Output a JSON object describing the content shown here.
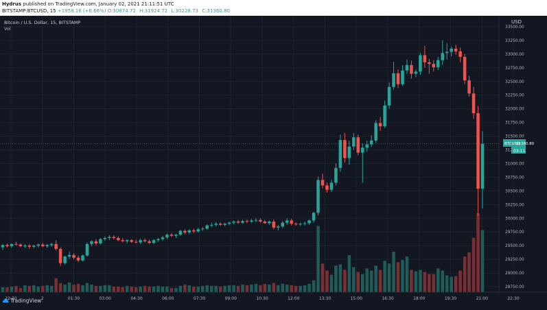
{
  "publish_line": {
    "author": "Hydrus",
    "text": "published on TradingView.com, January 02, 2021 21:11:51 UTC"
  },
  "ohlc_line": {
    "symbol": "BITSTAMP:BTCUSD, 15",
    "change": "+1958.16 (+6.66%)",
    "o": "O:30874.72",
    "h": "H:31924.72",
    "l": "L:30228.73",
    "c": "C:31360.80"
  },
  "chart_title": "Bitcoin / U.S. Dollar, 15, BITSTAMP",
  "volume_label": "Vol",
  "currency": "USD",
  "price_badge": {
    "symbol": "BTCUSD",
    "price": "31360.80",
    "countdown": "03:11"
  },
  "footer_brand": "TradingView",
  "colors": {
    "up": "#26a69a",
    "down": "#ef5350",
    "up_vol": "#1f5c57",
    "down_vol": "#7a2f33",
    "background": "#131722"
  },
  "chart_data": {
    "type": "candlestick",
    "y_axis_ticks": [
      "33500.00",
      "33250.00",
      "33000.00",
      "32750.00",
      "32500.00",
      "32250.00",
      "32000.00",
      "31750.00",
      "31500.00",
      "31250.00",
      "31000.00",
      "30750.00",
      "30500.00",
      "30250.00",
      "30000.00",
      "29750.00",
      "29500.00",
      "29250.00",
      "29000.00",
      "28750.00"
    ],
    "x_axis_ticks": [
      "22:30",
      "2",
      "01:30",
      "03:00",
      "04:30",
      "06:00",
      "07:30",
      "09:00",
      "10:30",
      "12:00",
      "13:30",
      "15:00",
      "16:30",
      "18:00",
      "19:30",
      "21:00",
      "22:30"
    ],
    "ylim": [
      28650,
      33700
    ],
    "candles": [
      [
        29470,
        29530,
        29420,
        29510,
        0.7
      ],
      [
        29510,
        29540,
        29470,
        29490,
        0.7
      ],
      [
        29490,
        29540,
        29460,
        29530,
        0.8
      ],
      [
        29530,
        29570,
        29500,
        29520,
        0.9
      ],
      [
        29520,
        29540,
        29470,
        29490,
        0.6
      ],
      [
        29490,
        29530,
        29460,
        29500,
        1.0
      ],
      [
        29500,
        29530,
        29440,
        29480,
        0.9
      ],
      [
        29480,
        29520,
        29450,
        29500,
        1.0
      ],
      [
        29500,
        29540,
        29470,
        29520,
        0.8
      ],
      [
        29520,
        29550,
        29470,
        29490,
        0.9
      ],
      [
        29490,
        29530,
        29460,
        29510,
        1.0
      ],
      [
        29510,
        29550,
        29480,
        29530,
        0.9
      ],
      [
        29530,
        29600,
        29410,
        29440,
        2.0
      ],
      [
        29440,
        29470,
        29130,
        29180,
        1.3
      ],
      [
        29180,
        29320,
        29150,
        29300,
        1.1
      ],
      [
        29300,
        29390,
        29260,
        29330,
        1.4
      ],
      [
        29330,
        29360,
        29250,
        29280,
        1.1
      ],
      [
        29280,
        29320,
        29200,
        29230,
        1.2
      ],
      [
        29230,
        29340,
        29210,
        29320,
        1.0
      ],
      [
        29320,
        29560,
        29300,
        29530,
        1.3
      ],
      [
        29530,
        29600,
        29490,
        29580,
        1.1
      ],
      [
        29580,
        29620,
        29510,
        29540,
        0.9
      ],
      [
        29540,
        29640,
        29520,
        29620,
        0.9
      ],
      [
        29620,
        29670,
        29590,
        29640,
        1.0
      ],
      [
        29640,
        29690,
        29600,
        29660,
        1.0
      ],
      [
        29660,
        29690,
        29610,
        29640,
        0.8
      ],
      [
        29640,
        29670,
        29580,
        29600,
        0.8
      ],
      [
        29600,
        29640,
        29560,
        29580,
        0.7
      ],
      [
        29580,
        29620,
        29540,
        29600,
        0.9
      ],
      [
        29600,
        29620,
        29550,
        29570,
        0.8
      ],
      [
        29570,
        29610,
        29540,
        29560,
        0.7
      ],
      [
        29560,
        29630,
        29530,
        29600,
        0.8
      ],
      [
        29600,
        29630,
        29560,
        29580,
        0.9
      ],
      [
        29580,
        29610,
        29530,
        29550,
        0.8
      ],
      [
        29550,
        29620,
        29530,
        29600,
        0.8
      ],
      [
        29600,
        29640,
        29570,
        29620,
        0.9
      ],
      [
        29620,
        29680,
        29590,
        29650,
        0.8
      ],
      [
        29650,
        29720,
        29620,
        29700,
        0.8
      ],
      [
        29700,
        29730,
        29660,
        29680,
        0.6
      ],
      [
        29680,
        29720,
        29640,
        29700,
        0.6
      ],
      [
        29700,
        29790,
        29680,
        29770,
        0.9
      ],
      [
        29770,
        29800,
        29710,
        29740,
        1.1
      ],
      [
        29740,
        29800,
        29710,
        29780,
        1.0
      ],
      [
        29780,
        29810,
        29730,
        29760,
        0.8
      ],
      [
        29760,
        29830,
        29740,
        29800,
        0.8
      ],
      [
        29800,
        29840,
        29770,
        29810,
        0.9
      ],
      [
        29810,
        29890,
        29790,
        29870,
        1.0
      ],
      [
        29870,
        29920,
        29840,
        29880,
        0.9
      ],
      [
        29880,
        29930,
        29850,
        29900,
        0.9
      ],
      [
        29900,
        29930,
        29860,
        29880,
        0.8
      ],
      [
        29880,
        29920,
        29850,
        29900,
        0.9
      ],
      [
        29900,
        29940,
        29870,
        29920,
        1.0
      ],
      [
        29920,
        29960,
        29890,
        29940,
        1.0
      ],
      [
        29940,
        29970,
        29900,
        29920,
        0.9
      ],
      [
        29920,
        29970,
        29900,
        29950,
        1.1
      ],
      [
        29950,
        29980,
        29910,
        29940,
        1.0
      ],
      [
        29940,
        29990,
        29920,
        29960,
        1.1
      ],
      [
        29960,
        30000,
        29930,
        29970,
        1.2
      ],
      [
        29970,
        30000,
        29920,
        29940,
        1.0
      ],
      [
        29940,
        29970,
        29900,
        29910,
        1.2
      ],
      [
        29910,
        29960,
        29880,
        29940,
        1.1
      ],
      [
        29940,
        29980,
        29800,
        29830,
        1.3
      ],
      [
        29830,
        29880,
        29780,
        29850,
        1.0
      ],
      [
        29850,
        29950,
        29820,
        29920,
        1.2
      ],
      [
        29920,
        30000,
        29880,
        29960,
        1.1
      ],
      [
        29960,
        29990,
        29870,
        29900,
        1.0
      ],
      [
        29900,
        29930,
        29860,
        29890,
        0.9
      ],
      [
        29890,
        29920,
        29860,
        29900,
        0.9
      ],
      [
        29900,
        29940,
        29870,
        29910,
        1.0
      ],
      [
        29910,
        29980,
        29880,
        29960,
        1.2
      ],
      [
        29960,
        30120,
        29920,
        30100,
        1.7
      ],
      [
        30100,
        30760,
        30050,
        30700,
        9.5
      ],
      [
        30700,
        30820,
        30550,
        30600,
        4.1
      ],
      [
        30600,
        30650,
        30470,
        30520,
        3.1
      ],
      [
        30520,
        30700,
        30480,
        30650,
        2.5
      ],
      [
        30650,
        31000,
        30600,
        30920,
        3.8
      ],
      [
        30920,
        31530,
        30850,
        31430,
        4.0
      ],
      [
        31430,
        31560,
        31020,
        31100,
        3.2
      ],
      [
        31100,
        31420,
        30980,
        31310,
        5.3
      ],
      [
        31310,
        31560,
        31250,
        31480,
        3.6
      ],
      [
        31480,
        31530,
        31150,
        31200,
        2.9
      ],
      [
        31200,
        31370,
        30650,
        31290,
        2.6
      ],
      [
        31290,
        31420,
        31220,
        31350,
        3.4
      ],
      [
        31350,
        31520,
        31300,
        31420,
        3.1
      ],
      [
        31420,
        31790,
        31380,
        31740,
        3.8
      ],
      [
        31740,
        31850,
        31600,
        31680,
        3.2
      ],
      [
        31680,
        32150,
        31650,
        32060,
        4.5
      ],
      [
        32060,
        32480,
        32000,
        32400,
        4.1
      ],
      [
        32400,
        32860,
        32350,
        32650,
        5.8
      ],
      [
        32650,
        32720,
        32380,
        32450,
        4.3
      ],
      [
        32450,
        32800,
        32420,
        32700,
        4.6
      ],
      [
        32700,
        32900,
        32640,
        32800,
        5.1
      ],
      [
        32800,
        32880,
        32550,
        32640,
        3.2
      ],
      [
        32640,
        32720,
        32580,
        32680,
        3.0
      ],
      [
        32680,
        33020,
        32620,
        32980,
        3.2
      ],
      [
        32980,
        33150,
        32750,
        32850,
        2.9
      ],
      [
        32850,
        32910,
        32640,
        32820,
        2.6
      ],
      [
        32820,
        32890,
        32680,
        32760,
        2.6
      ],
      [
        32760,
        32950,
        32710,
        32890,
        3.4
      ],
      [
        32890,
        33250,
        32800,
        33020,
        3.1
      ],
      [
        33020,
        33200,
        32900,
        33040,
        2.4
      ],
      [
        33040,
        33140,
        32960,
        33100,
        2.2
      ],
      [
        33100,
        33170,
        32990,
        33050,
        2.3
      ],
      [
        33050,
        33120,
        32850,
        32950,
        3.1
      ],
      [
        32950,
        33000,
        32450,
        32520,
        5.1
      ],
      [
        32520,
        32600,
        32220,
        32280,
        5.7
      ],
      [
        32280,
        32400,
        31820,
        31920,
        7.8
      ],
      [
        31920,
        32050,
        30040,
        30540,
        11.3
      ],
      [
        30540,
        31590,
        30180,
        31360,
        8.9
      ]
    ],
    "vol_max": 11.3
  }
}
